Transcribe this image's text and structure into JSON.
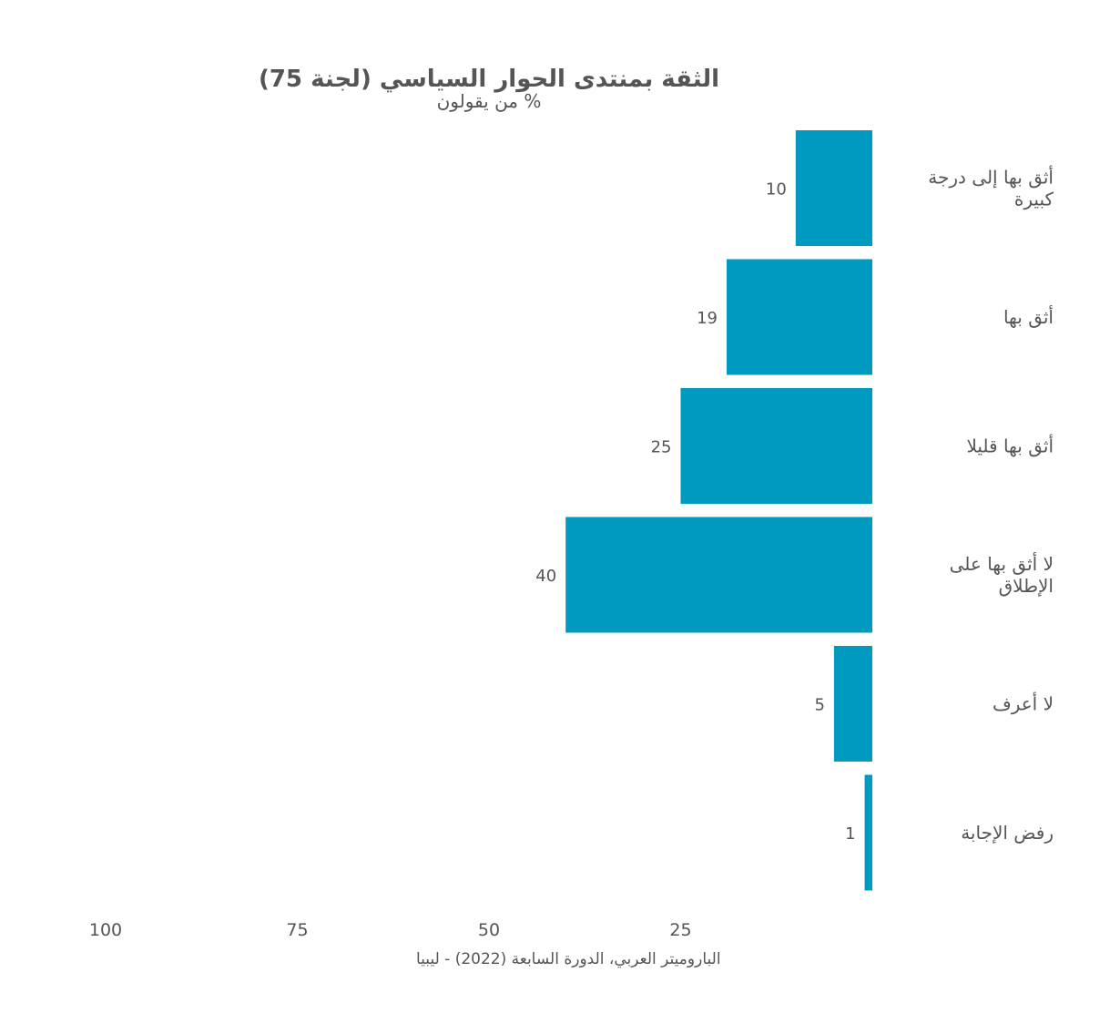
{
  "chart_data": {
    "type": "bar",
    "orientation": "horizontal",
    "title": "الثقة بمنتدى الحوار السياسي (لجنة 75)",
    "subtitle": "% من يقولون",
    "categories": [
      [
        "أثق بها إلى درجة",
        "كبيرة"
      ],
      [
        "أثق بها"
      ],
      [
        "أثق بها قليلا"
      ],
      [
        "لا أثق بها على",
        "الإطلاق"
      ],
      [
        "لا أعرف"
      ],
      [
        "رفض الإجابة"
      ]
    ],
    "values": [
      10,
      19,
      25,
      40,
      5,
      1
    ],
    "value_labels": [
      "10",
      "19",
      "25",
      "40",
      "5",
      "1"
    ],
    "xlim": [
      0,
      100
    ],
    "x_direction": "reversed",
    "x_ticks": [
      100,
      75,
      50,
      25
    ],
    "x_tick_labels": [
      "100",
      "75",
      "50",
      "25"
    ],
    "bar_color": "#0099BF",
    "grid": false,
    "source": "الباروميتر العربي، الدورة السابعة (2022) - ليبيا"
  }
}
